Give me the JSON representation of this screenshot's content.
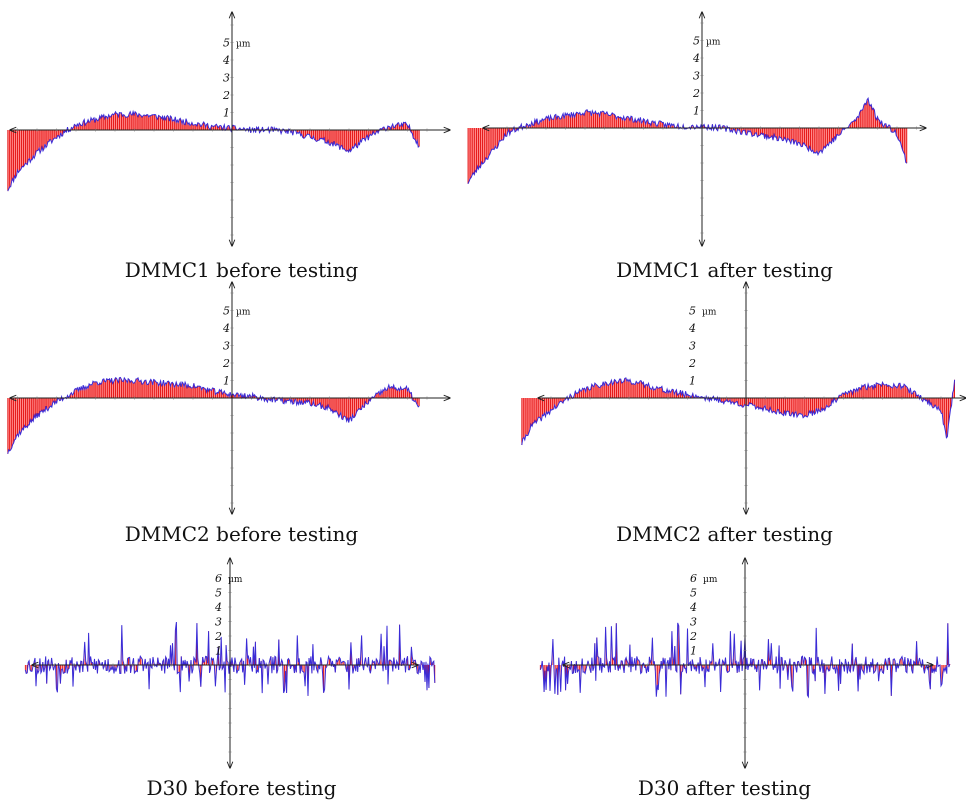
{
  "chart_data": [
    {
      "type": "area",
      "caption": "DMMC1 before testing",
      "unit": "µm",
      "y_tick_labels": [
        "1",
        "2",
        "3",
        "4",
        "5"
      ],
      "ylim": [
        -7,
        7
      ],
      "profile": [
        [
          -11.5,
          -3.4
        ],
        [
          -11,
          -2.4
        ],
        [
          -10,
          -1.3
        ],
        [
          -9,
          -0.4
        ],
        [
          -8,
          0.3
        ],
        [
          -7,
          0.6
        ],
        [
          -6,
          0.9
        ],
        [
          -5,
          0.9
        ],
        [
          -4,
          0.8
        ],
        [
          -3,
          0.6
        ],
        [
          -2,
          0.4
        ],
        [
          -1,
          0.2
        ],
        [
          0,
          0.1
        ],
        [
          1,
          0.0
        ],
        [
          2,
          0.0
        ],
        [
          3,
          -0.1
        ],
        [
          4,
          -0.4
        ],
        [
          5,
          -0.7
        ],
        [
          6,
          -1.2
        ],
        [
          7,
          -0.4
        ],
        [
          8,
          0.2
        ],
        [
          9,
          0.3
        ],
        [
          9.6,
          -0.9
        ]
      ]
    },
    {
      "type": "area",
      "caption": "DMMC1 after testing",
      "unit": "µm",
      "y_tick_labels": [
        "1",
        "2",
        "3",
        "4",
        "5"
      ],
      "ylim": [
        -7,
        7
      ],
      "profile": [
        [
          -12,
          -3.1
        ],
        [
          -11.5,
          -2.3
        ],
        [
          -10.5,
          -1.0
        ],
        [
          -10,
          -0.3
        ],
        [
          -9,
          0.2
        ],
        [
          -8,
          0.5
        ],
        [
          -7,
          0.7
        ],
        [
          -6,
          0.9
        ],
        [
          -5,
          0.8
        ],
        [
          -4,
          0.6
        ],
        [
          -3,
          0.4
        ],
        [
          -2,
          0.2
        ],
        [
          -1,
          0.1
        ],
        [
          0,
          0.1
        ],
        [
          1,
          0.0
        ],
        [
          2,
          -0.2
        ],
        [
          3,
          -0.4
        ],
        [
          4,
          -0.6
        ],
        [
          5,
          -0.9
        ],
        [
          6,
          -1.4
        ],
        [
          7,
          -0.4
        ],
        [
          8,
          0.6
        ],
        [
          8.5,
          1.7
        ],
        [
          9,
          0.5
        ],
        [
          10,
          -0.3
        ],
        [
          10.5,
          -2.0
        ]
      ]
    },
    {
      "type": "area",
      "caption": "DMMC2 before testing",
      "unit": "µm",
      "y_tick_labels": [
        "1",
        "2",
        "3",
        "4",
        "5"
      ],
      "ylim": [
        -7,
        7
      ],
      "profile": [
        [
          -11.5,
          -3.1
        ],
        [
          -11,
          -2.1
        ],
        [
          -10,
          -1.0
        ],
        [
          -9,
          -0.2
        ],
        [
          -8,
          0.4
        ],
        [
          -7,
          0.9
        ],
        [
          -6,
          1.0
        ],
        [
          -5,
          1.0
        ],
        [
          -4,
          0.9
        ],
        [
          -3,
          0.8
        ],
        [
          -2,
          0.7
        ],
        [
          -1,
          0.4
        ],
        [
          0,
          0.2
        ],
        [
          1,
          0.1
        ],
        [
          2,
          -0.1
        ],
        [
          3,
          -0.2
        ],
        [
          4,
          -0.3
        ],
        [
          5,
          -0.6
        ],
        [
          6,
          -1.3
        ],
        [
          7,
          -0.2
        ],
        [
          8,
          0.6
        ],
        [
          9,
          0.5
        ],
        [
          9.6,
          -0.6
        ]
      ]
    },
    {
      "type": "area",
      "caption": "DMMC2 after testing",
      "unit": "µm",
      "y_tick_labels": [
        "1",
        "2",
        "3",
        "4",
        "5"
      ],
      "ylim": [
        -7,
        7
      ],
      "profile": [
        [
          -11.5,
          -2.6
        ],
        [
          -11,
          -1.6
        ],
        [
          -10,
          -0.7
        ],
        [
          -9,
          0.1
        ],
        [
          -8,
          0.6
        ],
        [
          -7,
          0.9
        ],
        [
          -6,
          1.0
        ],
        [
          -5,
          0.7
        ],
        [
          -4,
          0.4
        ],
        [
          -3,
          0.2
        ],
        [
          -2,
          0.0
        ],
        [
          -1,
          -0.2
        ],
        [
          0,
          -0.4
        ],
        [
          1,
          -0.6
        ],
        [
          2,
          -0.9
        ],
        [
          3,
          -1.0
        ],
        [
          4,
          -0.6
        ],
        [
          5,
          0.2
        ],
        [
          6,
          0.6
        ],
        [
          7,
          0.8
        ],
        [
          8,
          0.7
        ],
        [
          9,
          0.0
        ],
        [
          10,
          -0.7
        ],
        [
          10.3,
          -2.3
        ],
        [
          10.7,
          1.0
        ]
      ]
    },
    {
      "type": "area",
      "caption": "D30 before testing",
      "unit": "µm",
      "y_tick_labels": [
        "1",
        "2",
        "3",
        "4",
        "5",
        "6"
      ],
      "ylim": [
        -7,
        7
      ],
      "profile": [
        [
          -10.5,
          0.0
        ],
        [
          10.5,
          0.0
        ]
      ]
    },
    {
      "type": "area",
      "caption": "D30 after testing",
      "unit": "µm",
      "y_tick_labels": [
        "1",
        "2",
        "3",
        "4",
        "5",
        "6"
      ],
      "ylim": [
        -7,
        7
      ],
      "profile": [
        [
          -10.5,
          0.0
        ],
        [
          10.5,
          0.0
        ]
      ]
    }
  ]
}
